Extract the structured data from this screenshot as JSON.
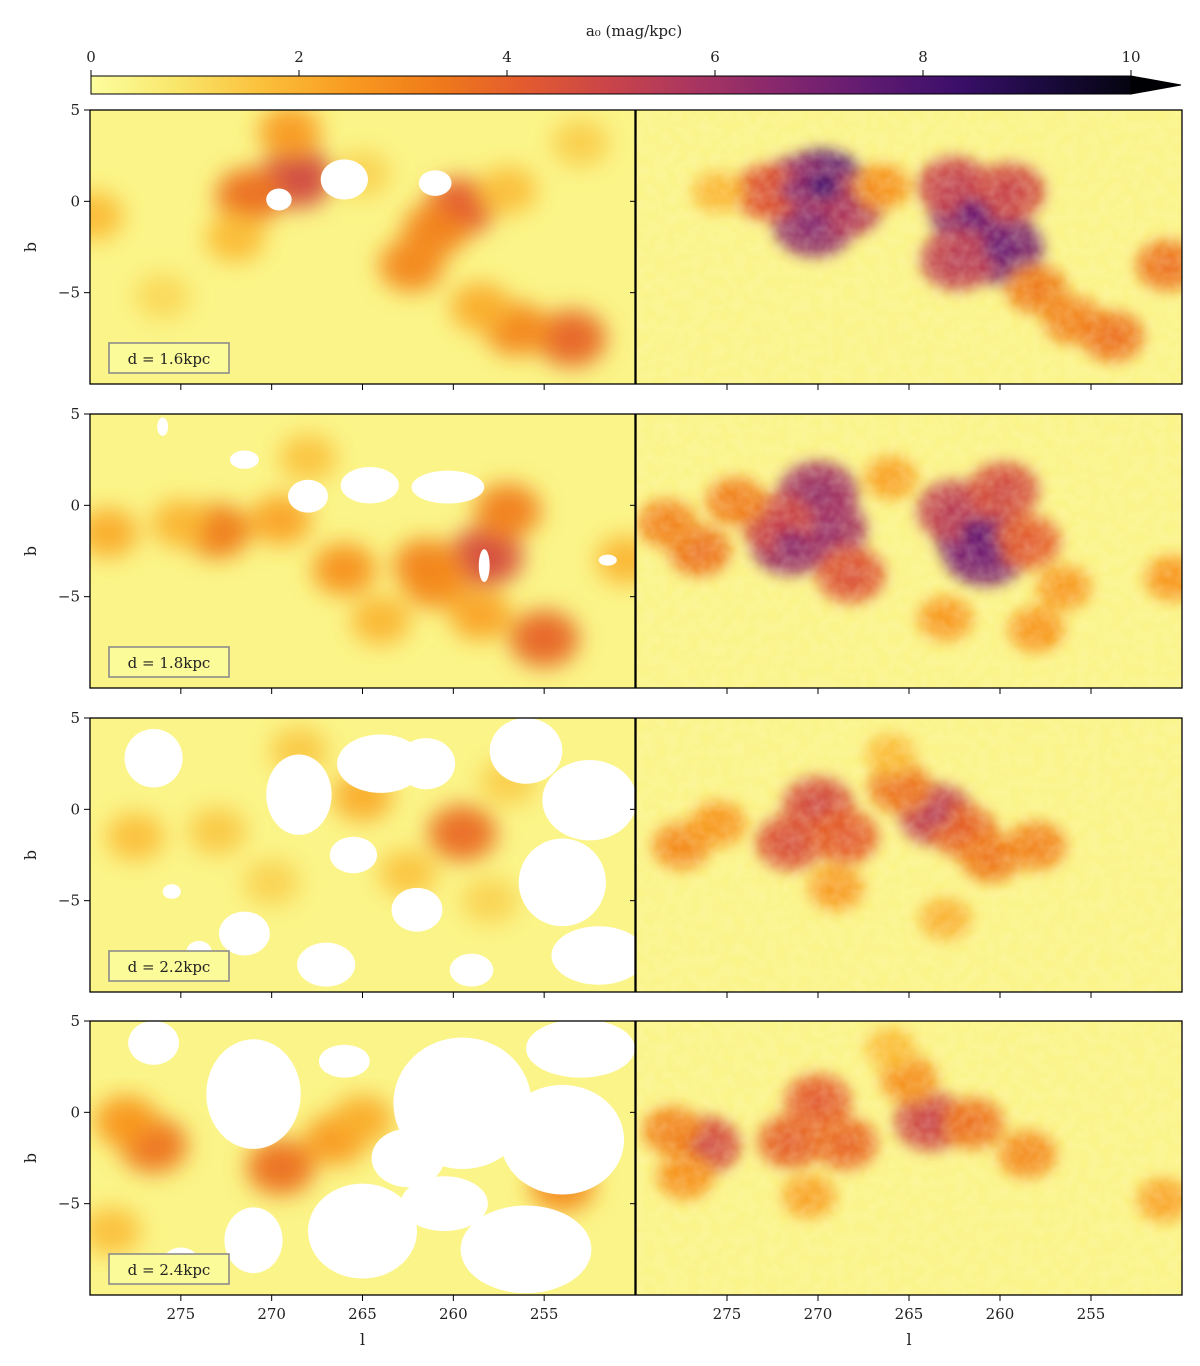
{
  "chart_data": {
    "type": "heatmap",
    "colorbar": {
      "label": "a₀ (mag/kpc)",
      "range": [
        0,
        10
      ],
      "ticks": [
        0,
        2,
        4,
        6,
        8,
        10
      ],
      "colormap": "inferno_r",
      "extend": "max",
      "colors": [
        "#fcfe9e",
        "#f9e66a",
        "#fbbf3a",
        "#f89a20",
        "#ef7a1a",
        "#e35b2f",
        "#c9444a",
        "#a83561",
        "#84266e",
        "#5f1a72",
        "#3b0f6a",
        "#1a0a3e",
        "#050410"
      ]
    },
    "x_axis": {
      "label": "l",
      "ticks": [
        275,
        270,
        265,
        260,
        255
      ],
      "range": [
        280,
        250
      ]
    },
    "y_axis": {
      "label": "b",
      "ticks": [
        5,
        0,
        -5
      ],
      "range": [
        -10,
        5
      ]
    },
    "panels": [
      {
        "distance_label": "d = 1.6kpc",
        "left": {
          "clumps": [
            {
              "l": 268.6,
              "b": 1.3,
              "a0": 4.6
            },
            {
              "l": 271.2,
              "b": 0.3,
              "a0": 3.5
            },
            {
              "l": 269.0,
              "b": 3.8,
              "a0": 2.4
            },
            {
              "l": 259.6,
              "b": -0.3,
              "a0": 4.0
            },
            {
              "l": 261.0,
              "b": -1.6,
              "a0": 3.0
            },
            {
              "l": 262.3,
              "b": -3.5,
              "a0": 2.9
            },
            {
              "l": 253.5,
              "b": -7.5,
              "a0": 3.8
            },
            {
              "l": 256.5,
              "b": -7.0,
              "a0": 2.9
            },
            {
              "l": 258.5,
              "b": -5.8,
              "a0": 2.0
            },
            {
              "l": 272.0,
              "b": -2.0,
              "a0": 1.7
            },
            {
              "l": 279.8,
              "b": -0.8,
              "a0": 1.7
            },
            {
              "l": 257.0,
              "b": 0.6,
              "a0": 1.6
            },
            {
              "l": 253.0,
              "b": 3.2,
              "a0": 1.3
            },
            {
              "l": 276.0,
              "b": -5.2,
              "a0": 1.1
            },
            {
              "l": 265.0,
              "b": 1.5,
              "a0": 1.2
            }
          ],
          "masked": [
            {
              "l": 269.6,
              "b": 0.1,
              "rl": 0.7,
              "rb": 0.6
            },
            {
              "l": 266.0,
              "b": 1.2,
              "rl": 1.3,
              "rb": 1.1
            },
            {
              "l": 261.0,
              "b": 1.0,
              "rl": 0.9,
              "rb": 0.7
            }
          ]
        },
        "right": {
          "clumps": [
            {
              "l": 269.8,
              "b": 0.8,
              "a0": 7.6
            },
            {
              "l": 271.2,
              "b": 0.6,
              "a0": 6.2
            },
            {
              "l": 270.2,
              "b": -1.2,
              "a0": 6.4
            },
            {
              "l": 268.5,
              "b": -0.2,
              "a0": 5.5
            },
            {
              "l": 272.8,
              "b": 0.5,
              "a0": 4.2
            },
            {
              "l": 261.5,
              "b": -0.6,
              "a0": 6.8
            },
            {
              "l": 260.0,
              "b": -2.6,
              "a0": 6.9
            },
            {
              "l": 262.5,
              "b": 0.8,
              "a0": 5.0
            },
            {
              "l": 259.5,
              "b": 0.5,
              "a0": 4.8
            },
            {
              "l": 262.3,
              "b": -3.2,
              "a0": 5.2
            },
            {
              "l": 258.0,
              "b": -4.8,
              "a0": 3.2
            },
            {
              "l": 256.0,
              "b": -6.5,
              "a0": 3.0
            },
            {
              "l": 253.8,
              "b": -7.4,
              "a0": 3.4
            },
            {
              "l": 250.8,
              "b": -3.5,
              "a0": 3.4
            },
            {
              "l": 266.5,
              "b": 0.8,
              "a0": 2.6
            },
            {
              "l": 275.5,
              "b": 0.5,
              "a0": 1.8
            }
          ]
        }
      },
      {
        "distance_label": "d = 1.8kpc",
        "left": {
          "clumps": [
            {
              "l": 258.2,
              "b": -2.8,
              "a0": 4.5
            },
            {
              "l": 255.0,
              "b": -7.3,
              "a0": 3.8
            },
            {
              "l": 261.5,
              "b": -3.3,
              "a0": 3.0
            },
            {
              "l": 261.0,
              "b": -4.2,
              "a0": 2.8
            },
            {
              "l": 273.0,
              "b": -1.4,
              "a0": 3.2
            },
            {
              "l": 266.0,
              "b": -3.5,
              "a0": 2.6
            },
            {
              "l": 257.0,
              "b": -0.3,
              "a0": 3.1
            },
            {
              "l": 279.0,
              "b": -1.5,
              "a0": 2.0
            },
            {
              "l": 275.0,
              "b": -1.0,
              "a0": 1.8
            },
            {
              "l": 269.5,
              "b": -0.8,
              "a0": 2.2
            },
            {
              "l": 258.5,
              "b": -6.0,
              "a0": 2.2
            },
            {
              "l": 264.0,
              "b": -6.3,
              "a0": 1.8
            },
            {
              "l": 250.5,
              "b": -3.0,
              "a0": 1.8
            },
            {
              "l": 268.0,
              "b": 2.6,
              "a0": 1.5
            }
          ],
          "masked": [
            {
              "l": 268.0,
              "b": 0.5,
              "rl": 1.1,
              "rb": 0.9
            },
            {
              "l": 264.6,
              "b": 1.1,
              "rl": 1.6,
              "rb": 1.0
            },
            {
              "l": 260.3,
              "b": 1.0,
              "rl": 2.0,
              "rb": 0.9
            },
            {
              "l": 271.5,
              "b": 2.5,
              "rl": 0.8,
              "rb": 0.5
            },
            {
              "l": 258.3,
              "b": -3.3,
              "rl": 0.3,
              "rb": 0.9
            },
            {
              "l": 251.5,
              "b": -3.0,
              "rl": 0.5,
              "rb": 0.3
            },
            {
              "l": 276.0,
              "b": 4.3,
              "rl": 0.3,
              "rb": 0.5
            }
          ]
        },
        "right": {
          "clumps": [
            {
              "l": 261.2,
              "b": -1.5,
              "a0": 7.0
            },
            {
              "l": 260.8,
              "b": -2.5,
              "a0": 6.8
            },
            {
              "l": 270.0,
              "b": 0.6,
              "a0": 6.0
            },
            {
              "l": 269.5,
              "b": -1.3,
              "a0": 5.9
            },
            {
              "l": 271.5,
              "b": -2.0,
              "a0": 6.2
            },
            {
              "l": 272.2,
              "b": -1.0,
              "a0": 4.8
            },
            {
              "l": 262.5,
              "b": -0.3,
              "a0": 5.2
            },
            {
              "l": 259.8,
              "b": 0.8,
              "a0": 4.6
            },
            {
              "l": 258.5,
              "b": -2.0,
              "a0": 4.0
            },
            {
              "l": 268.2,
              "b": -3.8,
              "a0": 4.3
            },
            {
              "l": 276.5,
              "b": -2.5,
              "a0": 3.4
            },
            {
              "l": 278.3,
              "b": -1.0,
              "a0": 3.0
            },
            {
              "l": 274.5,
              "b": 0.2,
              "a0": 3.1
            },
            {
              "l": 263.0,
              "b": -6.2,
              "a0": 2.4
            },
            {
              "l": 258.0,
              "b": -6.8,
              "a0": 2.5
            },
            {
              "l": 266.0,
              "b": 1.5,
              "a0": 2.2
            },
            {
              "l": 250.5,
              "b": -4.0,
              "a0": 2.5
            },
            {
              "l": 256.5,
              "b": -4.5,
              "a0": 2.4
            }
          ]
        }
      },
      {
        "distance_label": "d = 2.2kpc",
        "left": {
          "clumps": [
            {
              "l": 259.5,
              "b": -1.3,
              "a0": 3.6
            },
            {
              "l": 265.0,
              "b": 0.7,
              "a0": 2.0
            },
            {
              "l": 277.5,
              "b": -1.5,
              "a0": 1.6
            },
            {
              "l": 273.0,
              "b": -1.2,
              "a0": 1.4
            },
            {
              "l": 268.5,
              "b": 3.2,
              "a0": 1.4
            },
            {
              "l": 262.5,
              "b": -3.5,
              "a0": 1.5
            },
            {
              "l": 257.0,
              "b": 1.5,
              "a0": 1.3
            },
            {
              "l": 270.0,
              "b": -4.0,
              "a0": 1.2
            },
            {
              "l": 258.0,
              "b": -5.0,
              "a0": 1.2
            }
          ],
          "masked": [
            {
              "l": 276.5,
              "b": 2.8,
              "rl": 1.6,
              "rb": 1.6
            },
            {
              "l": 268.5,
              "b": 0.8,
              "rl": 1.8,
              "rb": 2.2
            },
            {
              "l": 264.0,
              "b": 2.5,
              "rl": 2.4,
              "rb": 1.6
            },
            {
              "l": 261.5,
              "b": 2.5,
              "rl": 1.6,
              "rb": 1.4
            },
            {
              "l": 256.0,
              "b": 3.2,
              "rl": 2.0,
              "rb": 1.8
            },
            {
              "l": 252.5,
              "b": 0.5,
              "rl": 2.6,
              "rb": 2.2
            },
            {
              "l": 254.0,
              "b": -4.0,
              "rl": 2.4,
              "rb": 2.4
            },
            {
              "l": 252.0,
              "b": -8.0,
              "rl": 2.6,
              "rb": 1.6
            },
            {
              "l": 262.0,
              "b": -5.5,
              "rl": 1.4,
              "rb": 1.2
            },
            {
              "l": 267.0,
              "b": -8.5,
              "rl": 1.6,
              "rb": 1.2
            },
            {
              "l": 271.5,
              "b": -6.8,
              "rl": 1.4,
              "rb": 1.2
            },
            {
              "l": 265.5,
              "b": -2.5,
              "rl": 1.3,
              "rb": 1.0
            },
            {
              "l": 259.0,
              "b": -8.8,
              "rl": 1.2,
              "rb": 0.9
            },
            {
              "l": 275.5,
              "b": -4.5,
              "rl": 0.5,
              "rb": 0.4
            },
            {
              "l": 274.0,
              "b": -7.8,
              "rl": 0.7,
              "rb": 0.6
            }
          ]
        },
        "right": {
          "clumps": [
            {
              "l": 263.5,
              "b": -0.3,
              "a0": 5.2
            },
            {
              "l": 270.0,
              "b": 0.2,
              "a0": 4.6
            },
            {
              "l": 271.5,
              "b": -1.8,
              "a0": 4.4
            },
            {
              "l": 268.5,
              "b": -1.5,
              "a0": 4.0
            },
            {
              "l": 262.0,
              "b": -1.2,
              "a0": 3.8
            },
            {
              "l": 265.5,
              "b": 1.2,
              "a0": 3.4
            },
            {
              "l": 260.5,
              "b": -2.6,
              "a0": 3.3
            },
            {
              "l": 258.0,
              "b": -2.0,
              "a0": 3.0
            },
            {
              "l": 277.5,
              "b": -2.0,
              "a0": 2.8
            },
            {
              "l": 275.5,
              "b": -0.8,
              "a0": 2.5
            },
            {
              "l": 269.0,
              "b": -4.3,
              "a0": 2.4
            },
            {
              "l": 263.0,
              "b": -6.0,
              "a0": 1.9
            },
            {
              "l": 266.0,
              "b": 3.0,
              "a0": 1.7
            }
          ]
        }
      },
      {
        "distance_label": "d = 2.4kpc",
        "left": {
          "clumps": [
            {
              "l": 276.5,
              "b": -1.8,
              "a0": 3.4
            },
            {
              "l": 278.0,
              "b": -0.5,
              "a0": 2.5
            },
            {
              "l": 269.5,
              "b": -3.0,
              "a0": 3.5
            },
            {
              "l": 266.5,
              "b": -1.5,
              "a0": 2.4
            },
            {
              "l": 254.0,
              "b": -4.0,
              "a0": 2.8
            },
            {
              "l": 265.0,
              "b": -0.4,
              "a0": 2.0
            },
            {
              "l": 278.8,
              "b": -6.5,
              "a0": 1.6
            }
          ],
          "masked": [
            {
              "l": 271.0,
              "b": 1.0,
              "rl": 2.6,
              "rb": 3.0
            },
            {
              "l": 265.0,
              "b": -6.5,
              "rl": 3.0,
              "rb": 2.6
            },
            {
              "l": 259.5,
              "b": 0.5,
              "rl": 3.8,
              "rb": 3.6
            },
            {
              "l": 254.0,
              "b": -1.5,
              "rl": 3.4,
              "rb": 3.0
            },
            {
              "l": 256.0,
              "b": -7.5,
              "rl": 3.6,
              "rb": 2.4
            },
            {
              "l": 253.0,
              "b": 3.5,
              "rl": 3.0,
              "rb": 1.6
            },
            {
              "l": 276.5,
              "b": 3.8,
              "rl": 1.4,
              "rb": 1.2
            },
            {
              "l": 271.0,
              "b": -7.0,
              "rl": 1.6,
              "rb": 1.8
            },
            {
              "l": 266.0,
              "b": 2.8,
              "rl": 1.4,
              "rb": 0.9
            },
            {
              "l": 262.5,
              "b": -2.5,
              "rl": 2.0,
              "rb": 1.6
            },
            {
              "l": 275.0,
              "b": -8.2,
              "rl": 1.0,
              "rb": 0.8
            },
            {
              "l": 260.5,
              "b": -5.0,
              "rl": 2.4,
              "rb": 1.5
            }
          ]
        },
        "right": {
          "clumps": [
            {
              "l": 263.8,
              "b": -0.5,
              "a0": 4.8
            },
            {
              "l": 276.2,
              "b": -1.8,
              "a0": 4.6
            },
            {
              "l": 270.0,
              "b": 0.6,
              "a0": 4.0
            },
            {
              "l": 271.5,
              "b": -1.6,
              "a0": 3.9
            },
            {
              "l": 268.5,
              "b": -1.7,
              "a0": 3.7
            },
            {
              "l": 261.5,
              "b": -0.6,
              "a0": 3.4
            },
            {
              "l": 278.0,
              "b": -1.0,
              "a0": 3.0
            },
            {
              "l": 258.5,
              "b": -2.3,
              "a0": 2.8
            },
            {
              "l": 265.0,
              "b": 1.8,
              "a0": 2.7
            },
            {
              "l": 277.3,
              "b": -3.5,
              "a0": 2.6
            },
            {
              "l": 270.5,
              "b": -4.6,
              "a0": 2.2
            },
            {
              "l": 251.0,
              "b": -4.8,
              "a0": 2.2
            },
            {
              "l": 266.0,
              "b": 3.5,
              "a0": 1.7
            }
          ]
        }
      }
    ]
  }
}
